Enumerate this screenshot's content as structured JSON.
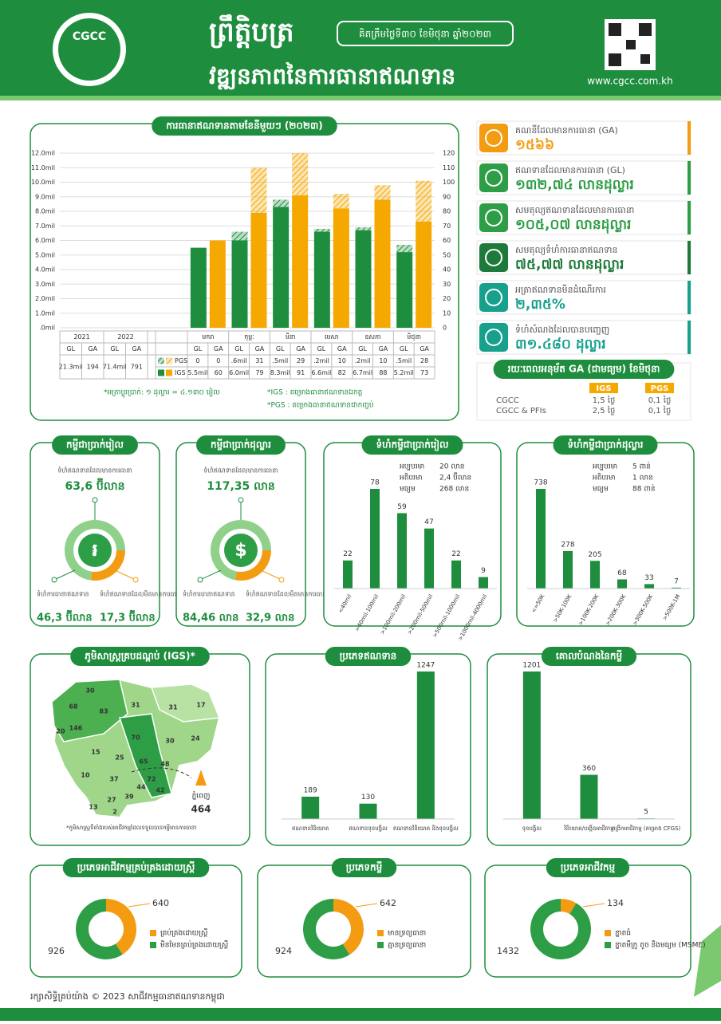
{
  "header": {
    "logo": "CGCC",
    "title": "ព្រឹត្តិបត្រ",
    "subtitle": "វឌ្ឍនភាពនៃការធានាឥណទាន",
    "date": "គិតត្រឹមថ្ងៃទី៣០ ខែមិថុនា ឆ្នាំ២០២៣",
    "website": "www.cgcc.com.kh"
  },
  "kpis": [
    {
      "label": "គណនីដែលមានការធានា (GA)",
      "value": "១៥៦៦"
    },
    {
      "label": "ឥណទានដែលមានការធានា (GL)",
      "value": "១៣២,៧៤ លានដុល្លារ"
    },
    {
      "label": "សមតុល្យឥណទានដែលមានការធានា",
      "value": "១០៥,០៧ លានដុល្លារ"
    },
    {
      "label": "សមតុល្យទំហំការធានាឥណទាន",
      "value": "៧៥,៧៧ លានដុល្លារ"
    },
    {
      "label": "អត្រាឥណទានមិនដំណើរការ",
      "value": "២,៣៥%"
    },
    {
      "label": "ទំហំសំណងដែលបានបញ្ចេញ",
      "value": "៣១.៤៨០ ដុល្លារ"
    }
  ],
  "ga_period": {
    "title": "រយៈពេលអនុម័ត GA (ជាមធ្យម) ខែមិថុនា",
    "columns": [
      "IGS",
      "PGS"
    ],
    "rows": [
      {
        "name": "CGCC",
        "values": [
          "1,5 ថ្ងៃ",
          "0,1 ថ្ងៃ"
        ]
      },
      {
        "name": "CGCC & PFIs",
        "values": [
          "2,5 ថ្ងៃ",
          "0,1 ថ្ងៃ"
        ]
      }
    ]
  },
  "chart_data": [
    {
      "type": "stacked",
      "title": "ការធានាឥណទានតាមខែនីមួយៗ (២០២៣)",
      "categories": [
        "មករា",
        "កុម្ភៈ",
        "មីនា",
        "មេសា",
        "ឧសភា",
        "មិថុនា"
      ],
      "column_labels": [
        "GL",
        "GA"
      ],
      "series": [
        {
          "name": "PGS",
          "color": "#1e8e3e",
          "ga_color": "#f5a800",
          "pattern": "hatch",
          "values": [
            0,
            0.6,
            0.5,
            0.2,
            0.2,
            0.5
          ],
          "value_labels": [
            "0",
            ".6mil",
            ".5mil",
            ".2mil",
            ".2mil",
            ".5mil"
          ],
          "ga_values": [
            0,
            31,
            29,
            10,
            10,
            28
          ]
        },
        {
          "name": "IGS",
          "color": "#1e8e3e",
          "ga_color": "#f5a800",
          "values": [
            5.5,
            6.0,
            8.3,
            6.6,
            6.7,
            5.2
          ],
          "value_labels": [
            "5.5mil",
            "6.0mil",
            "8.3mil",
            "6.6mil",
            "6.7mil",
            "5.2mil"
          ],
          "ga_values": [
            60,
            79,
            91,
            82,
            88,
            73
          ]
        }
      ],
      "ylim": [
        0,
        12
      ],
      "yticks": [
        {
          "value": 0,
          "label": ".0mil"
        },
        {
          "value": 1,
          "label": "1.0mil"
        },
        {
          "value": 2,
          "label": "2.0mil"
        },
        {
          "value": 3,
          "label": "3.0mil"
        },
        {
          "value": 4,
          "label": "4.0mil"
        },
        {
          "value": 5,
          "label": "5.0mil"
        },
        {
          "value": 6,
          "label": "6.0mil"
        },
        {
          "value": 7,
          "label": "7.0mil"
        },
        {
          "value": 8,
          "label": "8.0mil"
        },
        {
          "value": 9,
          "label": "9.0mil"
        },
        {
          "value": 10,
          "label": "10.0mil"
        },
        {
          "value": 11,
          "label": "11.0mil"
        },
        {
          "value": 12,
          "label": "12.0mil"
        }
      ],
      "y2lim": [
        0,
        120
      ],
      "y2ticks": [
        0,
        10,
        20,
        30,
        40,
        50,
        60,
        70,
        80,
        90,
        100,
        110,
        120
      ],
      "grid": true,
      "annual": {
        "years": [
          "2021",
          "2022"
        ],
        "gl": [
          "21.3mil",
          "71.4mil"
        ],
        "ga": [
          194,
          791
        ]
      },
      "notes": [
        "*អត្រាប្តូរប្រាក់: ១ ដុល្លារ = ៤.១៣០ រៀល",
        "*IGS : គម្រោងធានាឥណទានឯកត្ត",
        "*PGS : គម្រោងធានាឥណទានជាកញ្ចប់"
      ]
    },
    {
      "type": "donut",
      "title": "កម្ចីជាប្រាក់រៀល",
      "symbol": "៛",
      "total": {
        "label": "ទំហំឥណទានដែលមានការធានា",
        "value": 63.6,
        "value_label": "63,6 ប៊ីលាន"
      },
      "categories": [
        "ទំហំការធានាឥណទាន",
        "ទំហំឥណទានដែលមិនមានការធានា"
      ],
      "values": [
        46.3,
        17.3
      ],
      "value_labels": [
        "46,3 ប៊ីលាន",
        "17,3 ប៊ីលាន"
      ],
      "colors": [
        "#8fd18a",
        "#f39c12"
      ]
    },
    {
      "type": "donut",
      "title": "កម្ចីជាប្រាក់ដុល្លារ",
      "symbol": "$",
      "total": {
        "label": "ទំហំឥណទានដែលមានការធានា",
        "value": 117.35,
        "value_label": "117,35 លាន"
      },
      "categories": [
        "ទំហំការធានាឥណទាន",
        "ទំហំឥណទានដែលមិនមានការធានា"
      ],
      "values": [
        84.46,
        32.9
      ],
      "value_labels": [
        "84,46 លាន",
        "32,9 លាន"
      ],
      "colors": [
        "#8fd18a",
        "#f39c12"
      ]
    },
    {
      "type": "bar",
      "title": "ទំហំកម្ចីជាប្រាក់រៀល",
      "stats": [
        {
          "label": "អប្បបរមា",
          "value": "20 លាន"
        },
        {
          "label": "អតិបរមា",
          "value": "2,4 ប៊ីលាន"
        },
        {
          "label": "មធ្យម",
          "value": "268 លាន"
        }
      ],
      "categories": [
        "<40mil",
        ">40mil-100mil",
        ">100mil-200mil",
        ">200mil-500mil",
        ">500mil-1000mil",
        ">1000mil-4000mil"
      ],
      "values": [
        22,
        78,
        59,
        47,
        22,
        9
      ],
      "color": "#1e8e3e"
    },
    {
      "type": "bar",
      "title": "ទំហំកម្ចីជាប្រាក់ដុល្លារ",
      "stats": [
        {
          "label": "អប្បបរមា",
          "value": "5 ពាន់"
        },
        {
          "label": "អតិបរមា",
          "value": "1 លាន"
        },
        {
          "label": "មធ្យម",
          "value": "88 ពាន់"
        }
      ],
      "categories": [
        "<=50K",
        ">50K-100K",
        ">100K-200K",
        ">200K-300K",
        ">300K-500K",
        ">500K-1M"
      ],
      "values": [
        738,
        278,
        205,
        68,
        33,
        7
      ],
      "color": "#1e8e3e"
    },
    {
      "type": "map",
      "title": "ភូមិសាស្ត្រគ្របដណ្តប់ (IGS)*",
      "values": [
        30,
        68,
        83,
        31,
        31,
        17,
        146,
        20,
        70,
        30,
        24,
        15,
        25,
        65,
        48,
        10,
        37,
        72,
        44,
        13,
        27,
        39,
        42,
        2
      ],
      "capital": {
        "name": "ភ្នំពេញ",
        "value": 464
      },
      "note": "*ភូមិសាស្ត្រទីតាំងរបស់អាជីវកម្មដែលទទួលបានកម្ចីមានការធានា"
    },
    {
      "type": "bar",
      "title": "ប្រភេទឥណទាន",
      "categories": [
        "ឥណទានវិនិយោគ",
        "ឥណទានទុនបង្វិល",
        "ឥណទានវិនិយោគ និងទុនបង្វិល"
      ],
      "values": [
        189,
        130,
        1247
      ],
      "color": "#1e8e3e"
    },
    {
      "type": "bar",
      "title": "គោលបំណងនៃកម្ចី",
      "categories": [
        "ទុនបង្វិល",
        "វិនិយោគ/បង្កើនអាជីវកម្ម",
        "ពង្រីកអាជីវកម្ម (គម្រោង CFGS)"
      ],
      "values": [
        1201,
        360,
        5
      ],
      "color": "#1e8e3e"
    },
    {
      "type": "donut",
      "title": "ប្រភេទអាជីវកម្មគ្រប់គ្រងដោយស្ត្រី",
      "categories": [
        "គ្រប់គ្រងដោយស្ត្រី",
        "មិនមែនគ្រប់គ្រងដោយស្ត្រី"
      ],
      "values": [
        640,
        926
      ],
      "colors": [
        "#f39c12",
        "#2e9e46"
      ]
    },
    {
      "type": "donut",
      "title": "ប្រភេទកម្ចី",
      "categories": [
        "មានទ្រព្យធានា",
        "គ្មានទ្រព្យធានា"
      ],
      "values": [
        642,
        924
      ],
      "colors": [
        "#f39c12",
        "#2e9e46"
      ]
    },
    {
      "type": "donut",
      "title": "ប្រភេទអាជីវកម្ម",
      "categories": [
        "ខ្នាតធំ",
        "ខ្នាតមីក្រូ តូច និងមធ្យម (MSME)"
      ],
      "values": [
        134,
        1432
      ],
      "colors": [
        "#f39c12",
        "#2e9e46"
      ]
    }
  ],
  "footer": "រក្សាសិទ្ធិគ្រប់យ៉ាង © 2023 សាជីវកម្មធានាឥណទានកម្ពុជា"
}
